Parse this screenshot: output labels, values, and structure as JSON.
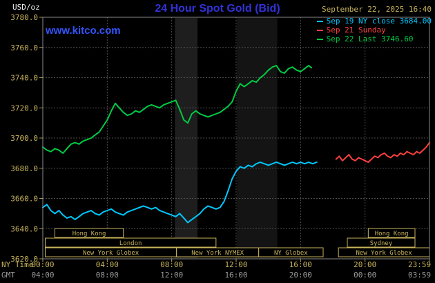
{
  "header": {
    "unit_label": "USD/oz",
    "title": "24 Hour Spot Gold (Bid)",
    "datetime": "September 22, 2025 16:40",
    "watermark": "www.kitco.com"
  },
  "legend": [
    {
      "id": "sep19",
      "label": "Sep 19 NY close 3684.00",
      "color": "#00c8ff"
    },
    {
      "id": "sep21",
      "label": "Sep 21 Sunday",
      "color": "#ff4040"
    },
    {
      "id": "sep22",
      "label": "Sep 22 Last 3746.60",
      "color": "#00cc44"
    }
  ],
  "colors": {
    "background": "#000000",
    "tan": "#c8b45c",
    "gray": "#9a9a9a",
    "grid": "#4d4d4d",
    "tick": "#a89850",
    "border": "#8a8a8a",
    "title_blue": "#3232d8",
    "link_blue": "#3355ff",
    "white": "#f0f0f0",
    "cyan": "#00c8ff",
    "red": "#ff4040",
    "green": "#00cc44"
  },
  "axes": {
    "ny_label": "NY Time",
    "gmt_label": "GMT",
    "x_ticks": [
      {
        "h": 0,
        "ny": "00:00",
        "gmt": "04:00"
      },
      {
        "h": 4,
        "ny": "04:00",
        "gmt": "08:00"
      },
      {
        "h": 8,
        "ny": "08:00",
        "gmt": "12:00"
      },
      {
        "h": 12,
        "ny": "12:00",
        "gmt": "16:00"
      },
      {
        "h": 16,
        "ny": "16:00",
        "gmt": "20:00"
      },
      {
        "h": 20,
        "ny": "20:00",
        "gmt": "00:00"
      },
      {
        "h": 23.983,
        "ny": "23:59",
        "gmt": "03:59"
      }
    ]
  },
  "chart_data": {
    "type": "line",
    "title": "24 Hour Spot Gold (Bid)",
    "ylabel": "USD/oz",
    "xlim": [
      0,
      24
    ],
    "ylim": [
      3620,
      3780
    ],
    "y_tick_step": 20,
    "x_gridline_hours": [
      4,
      8,
      12,
      16,
      20
    ],
    "bands": [
      {
        "start": 8.2,
        "end": 9.6,
        "color": "#1e1e1e"
      },
      {
        "start": 12.05,
        "end": 14.55,
        "color": "#141414"
      }
    ],
    "series": [
      {
        "id": "sep22",
        "name": "Sep 22",
        "color": "#00cc44",
        "last": 3746.6,
        "points": [
          [
            0,
            3694
          ],
          [
            0.25,
            3692
          ],
          [
            0.5,
            3691
          ],
          [
            0.75,
            3693
          ],
          [
            1,
            3692
          ],
          [
            1.25,
            3690
          ],
          [
            1.5,
            3693
          ],
          [
            1.75,
            3696
          ],
          [
            2,
            3697
          ],
          [
            2.25,
            3696
          ],
          [
            2.5,
            3698
          ],
          [
            2.75,
            3699
          ],
          [
            3,
            3700
          ],
          [
            3.25,
            3702
          ],
          [
            3.5,
            3704
          ],
          [
            3.75,
            3708
          ],
          [
            4,
            3712
          ],
          [
            4.25,
            3718
          ],
          [
            4.5,
            3723
          ],
          [
            4.75,
            3720
          ],
          [
            5,
            3717
          ],
          [
            5.25,
            3715
          ],
          [
            5.5,
            3716
          ],
          [
            5.75,
            3718
          ],
          [
            6,
            3717
          ],
          [
            6.25,
            3719
          ],
          [
            6.5,
            3721
          ],
          [
            6.75,
            3722
          ],
          [
            7,
            3721
          ],
          [
            7.25,
            3720
          ],
          [
            7.5,
            3722
          ],
          [
            7.75,
            3723
          ],
          [
            8,
            3724
          ],
          [
            8.25,
            3725
          ],
          [
            8.5,
            3719
          ],
          [
            8.75,
            3712
          ],
          [
            9,
            3710
          ],
          [
            9.25,
            3716
          ],
          [
            9.5,
            3718
          ],
          [
            9.75,
            3716
          ],
          [
            10,
            3715
          ],
          [
            10.25,
            3714
          ],
          [
            10.5,
            3715
          ],
          [
            10.75,
            3716
          ],
          [
            11,
            3717
          ],
          [
            11.25,
            3719
          ],
          [
            11.5,
            3721
          ],
          [
            11.75,
            3724
          ],
          [
            12,
            3731
          ],
          [
            12.25,
            3736
          ],
          [
            12.5,
            3734
          ],
          [
            12.75,
            3736
          ],
          [
            13,
            3738
          ],
          [
            13.25,
            3737
          ],
          [
            13.5,
            3740
          ],
          [
            13.75,
            3742
          ],
          [
            14,
            3745
          ],
          [
            14.25,
            3747
          ],
          [
            14.5,
            3748
          ],
          [
            14.75,
            3744
          ],
          [
            15,
            3743
          ],
          [
            15.25,
            3746
          ],
          [
            15.5,
            3747
          ],
          [
            15.75,
            3745
          ],
          [
            16,
            3744
          ],
          [
            16.25,
            3746
          ],
          [
            16.5,
            3748
          ],
          [
            16.67,
            3746.6
          ]
        ]
      },
      {
        "id": "sep19",
        "name": "Sep 19 NY close",
        "color": "#00c8ff",
        "close": 3684.0,
        "points": [
          [
            0,
            3654
          ],
          [
            0.25,
            3656
          ],
          [
            0.5,
            3652
          ],
          [
            0.75,
            3650
          ],
          [
            1,
            3652
          ],
          [
            1.25,
            3649
          ],
          [
            1.5,
            3647
          ],
          [
            1.75,
            3648
          ],
          [
            2,
            3646
          ],
          [
            2.25,
            3648
          ],
          [
            2.5,
            3650
          ],
          [
            2.75,
            3651
          ],
          [
            3,
            3652
          ],
          [
            3.25,
            3650
          ],
          [
            3.5,
            3649
          ],
          [
            3.75,
            3651
          ],
          [
            4,
            3652
          ],
          [
            4.25,
            3653
          ],
          [
            4.5,
            3651
          ],
          [
            4.75,
            3650
          ],
          [
            5,
            3649
          ],
          [
            5.25,
            3651
          ],
          [
            5.5,
            3652
          ],
          [
            5.75,
            3653
          ],
          [
            6,
            3654
          ],
          [
            6.25,
            3655
          ],
          [
            6.5,
            3654
          ],
          [
            6.75,
            3653
          ],
          [
            7,
            3654
          ],
          [
            7.25,
            3652
          ],
          [
            7.5,
            3651
          ],
          [
            7.75,
            3650
          ],
          [
            8,
            3649
          ],
          [
            8.25,
            3648
          ],
          [
            8.5,
            3650
          ],
          [
            8.75,
            3647
          ],
          [
            9,
            3644
          ],
          [
            9.25,
            3646
          ],
          [
            9.5,
            3648
          ],
          [
            9.75,
            3650
          ],
          [
            10,
            3653
          ],
          [
            10.25,
            3655
          ],
          [
            10.5,
            3654
          ],
          [
            10.75,
            3653
          ],
          [
            11,
            3654
          ],
          [
            11.25,
            3658
          ],
          [
            11.5,
            3665
          ],
          [
            11.75,
            3673
          ],
          [
            12,
            3678
          ],
          [
            12.25,
            3681
          ],
          [
            12.5,
            3680
          ],
          [
            12.75,
            3682
          ],
          [
            13,
            3681
          ],
          [
            13.25,
            3683
          ],
          [
            13.5,
            3684
          ],
          [
            13.75,
            3683
          ],
          [
            14,
            3682
          ],
          [
            14.25,
            3683
          ],
          [
            14.5,
            3684
          ],
          [
            14.75,
            3683
          ],
          [
            15,
            3682
          ],
          [
            15.25,
            3683
          ],
          [
            15.5,
            3684
          ],
          [
            15.75,
            3683
          ],
          [
            16,
            3684
          ],
          [
            16.25,
            3683
          ],
          [
            16.5,
            3684
          ],
          [
            16.75,
            3683
          ],
          [
            17,
            3684
          ]
        ]
      },
      {
        "id": "sep21",
        "name": "Sep 21 Sunday",
        "color": "#ff4040",
        "points": [
          [
            18.2,
            3686
          ],
          [
            18.4,
            3688
          ],
          [
            18.6,
            3685
          ],
          [
            18.8,
            3687
          ],
          [
            19,
            3689
          ],
          [
            19.2,
            3686
          ],
          [
            19.4,
            3685
          ],
          [
            19.6,
            3687
          ],
          [
            19.8,
            3686
          ],
          [
            20,
            3685
          ],
          [
            20.2,
            3684
          ],
          [
            20.4,
            3686
          ],
          [
            20.6,
            3688
          ],
          [
            20.8,
            3687
          ],
          [
            21,
            3689
          ],
          [
            21.2,
            3690
          ],
          [
            21.4,
            3688
          ],
          [
            21.6,
            3687
          ],
          [
            21.8,
            3689
          ],
          [
            22,
            3688
          ],
          [
            22.2,
            3690
          ],
          [
            22.4,
            3689
          ],
          [
            22.6,
            3691
          ],
          [
            22.8,
            3690
          ],
          [
            23,
            3689
          ],
          [
            23.2,
            3691
          ],
          [
            23.4,
            3690
          ],
          [
            23.6,
            3692
          ],
          [
            23.8,
            3694
          ],
          [
            24,
            3697
          ]
        ]
      }
    ],
    "sessions": [
      {
        "row": 1,
        "start": 0.75,
        "end": 5.0,
        "label": "Hong Kong"
      },
      {
        "row": 1,
        "start": 20.2,
        "end": 23.1,
        "label": "Hong Kong"
      },
      {
        "row": 2,
        "start": 0.15,
        "end": 10.75,
        "label": "London"
      },
      {
        "row": 2,
        "start": 18.9,
        "end": 23.1,
        "label": "Sydney"
      },
      {
        "row": 3,
        "start": 0.15,
        "end": 8.3,
        "label": "New York Globex"
      },
      {
        "row": 3,
        "start": 8.3,
        "end": 13.4,
        "label": "New York NYMEX"
      },
      {
        "row": 3,
        "start": 13.4,
        "end": 17.4,
        "label": "NY Globex"
      },
      {
        "row": 3,
        "start": 18.35,
        "end": 24.0,
        "label": "New York Globex"
      }
    ]
  }
}
